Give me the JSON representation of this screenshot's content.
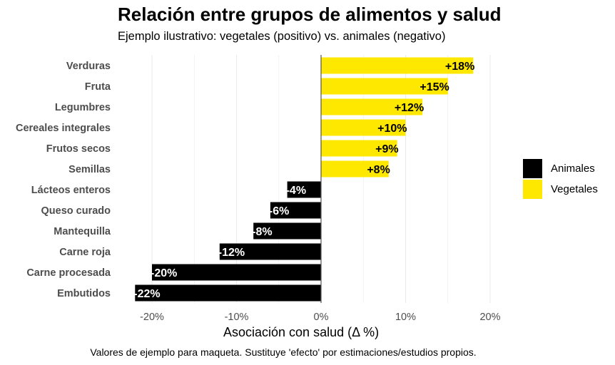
{
  "title": "Relación entre grupos de alimentos y salud",
  "subtitle": "Ejemplo ilustrativo: vegetales (positivo) vs. animales (negativo)",
  "caption": "Valores de ejemplo para maqueta. Sustituye 'efecto' por estimaciones/estudios propios.",
  "colors": {
    "animales": "#000000",
    "vegetales": "#FFE800",
    "grid": "#ebebeb",
    "axis": "#4d4d4d"
  },
  "legend": [
    {
      "label": "Animales",
      "color": "#000000"
    },
    {
      "label": "Vegetales",
      "color": "#FFE800"
    }
  ],
  "chart_data": {
    "type": "bar",
    "orientation": "horizontal",
    "title": "Relación entre grupos de alimentos y salud",
    "subtitle": "Ejemplo ilustrativo: vegetales (positivo) vs. animales (negativo)",
    "xlabel": "Asociación con salud (Δ %)",
    "ylabel": "",
    "xlim": [
      -22,
      20
    ],
    "xticks": [
      -20,
      -10,
      0,
      10,
      20
    ],
    "xtick_labels": [
      "-20%",
      "-10%",
      "0%",
      "10%",
      "20%"
    ],
    "grid": true,
    "legend_position": "right",
    "categories": [
      "Verduras",
      "Fruta",
      "Legumbres",
      "Cereales integrales",
      "Frutos secos",
      "Semillas",
      "Lácteos enteros",
      "Queso curado",
      "Mantequilla",
      "Carne roja",
      "Carne procesada",
      "Embutidos"
    ],
    "values": [
      18,
      15,
      12,
      10,
      9,
      8,
      -4,
      -6,
      -8,
      -12,
      -20,
      -22
    ],
    "groups": [
      "Vegetales",
      "Vegetales",
      "Vegetales",
      "Vegetales",
      "Vegetales",
      "Vegetales",
      "Animales",
      "Animales",
      "Animales",
      "Animales",
      "Animales",
      "Animales"
    ],
    "data_labels": [
      "+18%",
      "+15%",
      "+12%",
      "+10%",
      "+9%",
      "+8%",
      "-4%",
      "-6%",
      "-8%",
      "-12%",
      "-20%",
      "-22%"
    ]
  }
}
